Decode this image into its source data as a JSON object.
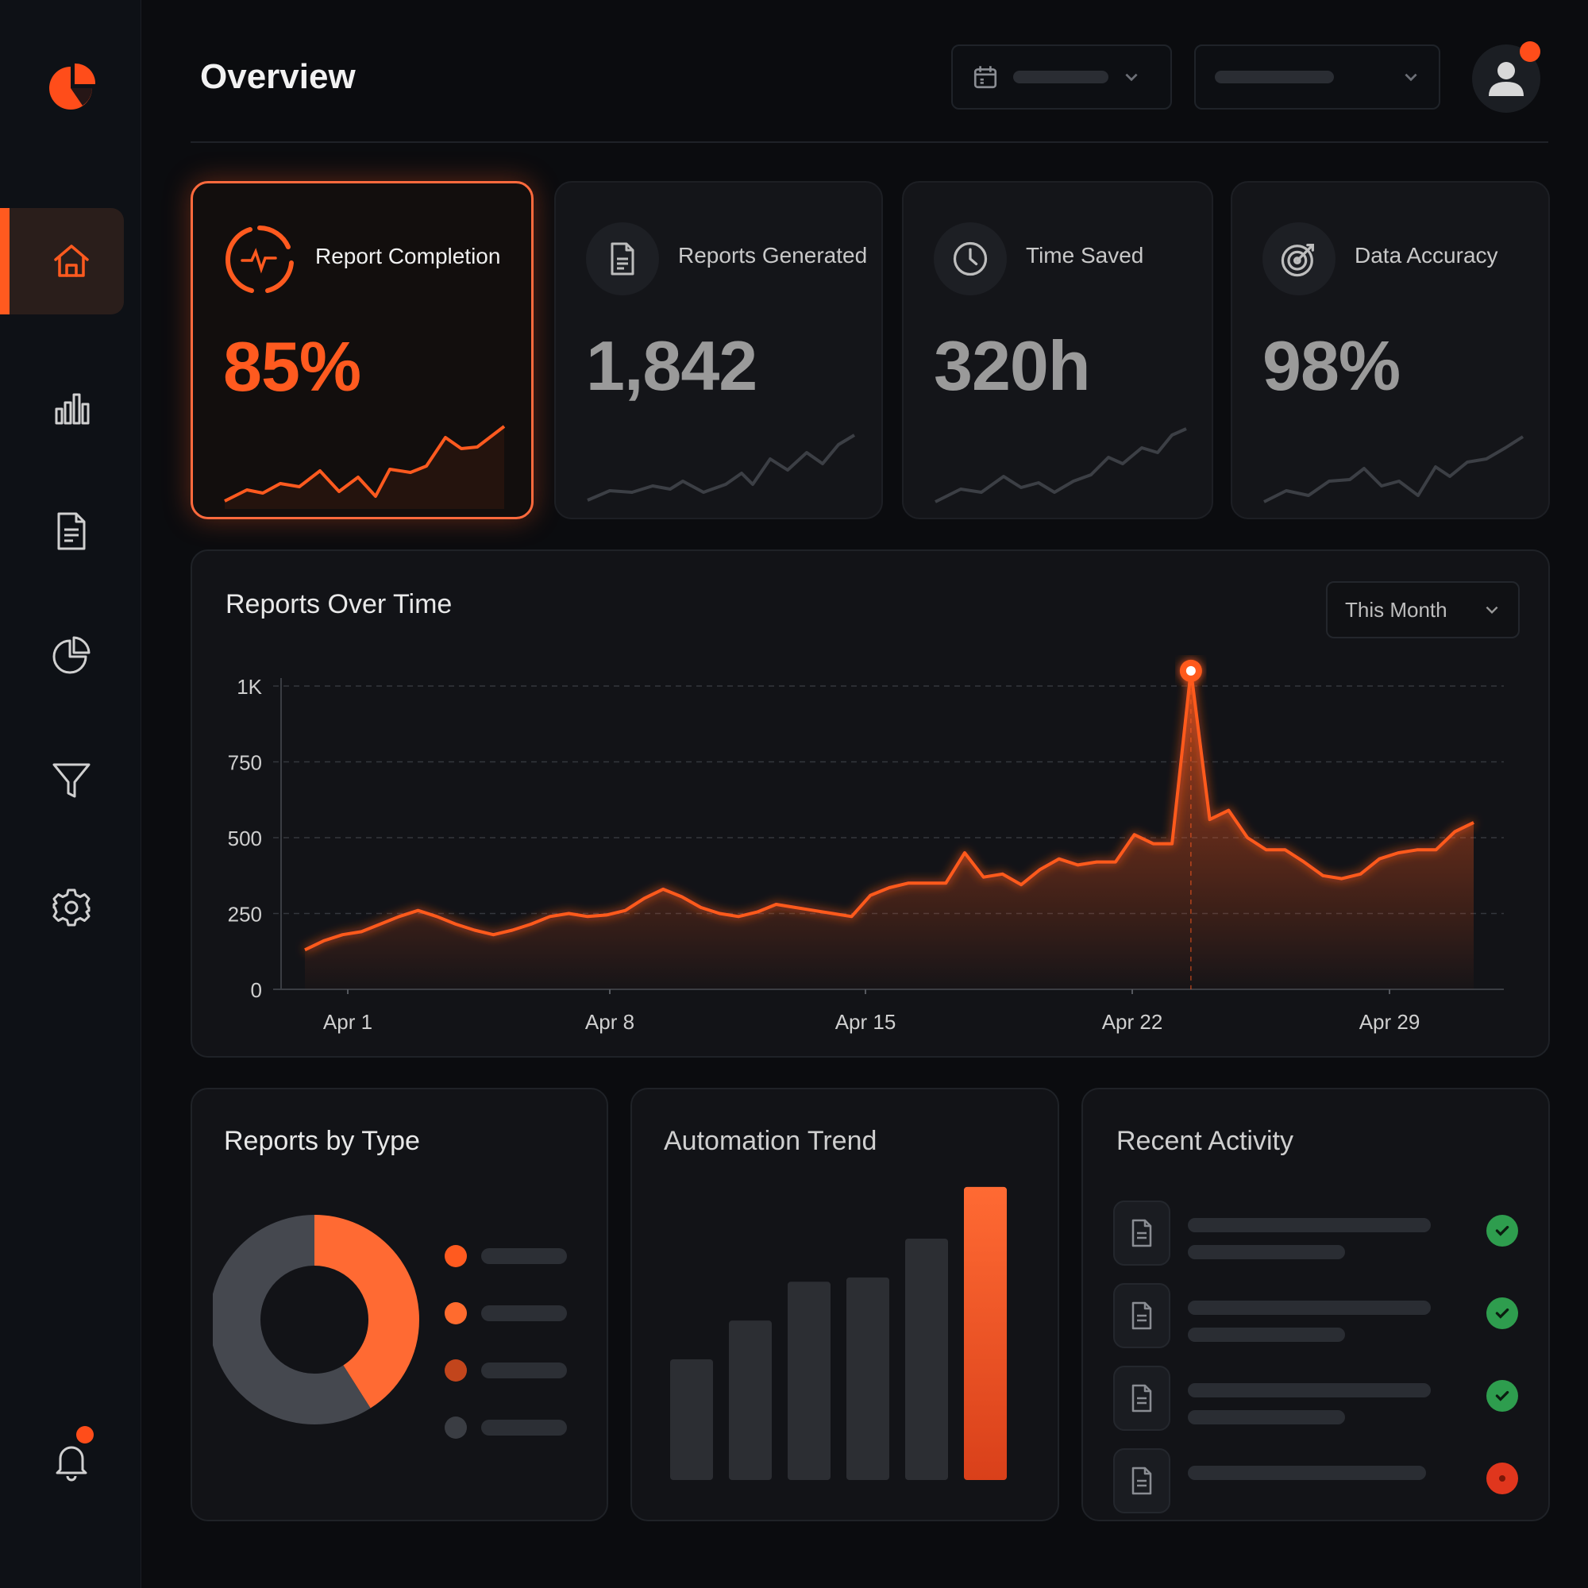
{
  "app": {
    "page_title": "Overview"
  },
  "sidebar": {
    "items": [
      {
        "name": "home-icon",
        "active": true
      },
      {
        "name": "bar-chart-icon",
        "active": false
      },
      {
        "name": "document-icon",
        "active": false
      },
      {
        "name": "pie-chart-icon",
        "active": false
      },
      {
        "name": "filter-icon",
        "active": false
      },
      {
        "name": "gear-icon",
        "active": false
      }
    ],
    "notifications": {
      "name": "bell-icon",
      "has_badge": true
    }
  },
  "header": {
    "date_select_icon": "calendar-icon",
    "user_avatar_badge": true
  },
  "kpis": [
    {
      "label": "Report Completion",
      "value": "85%",
      "icon": "pulse-icon",
      "highlight": true
    },
    {
      "label": "Reports Generated",
      "value": "1,842",
      "icon": "document-icon",
      "highlight": false
    },
    {
      "label": "Time Saved",
      "value": "320h",
      "icon": "clock-icon",
      "highlight": false
    },
    {
      "label": "Data Accuracy",
      "value": "98%",
      "icon": "target-icon",
      "highlight": false
    }
  ],
  "reports_over_time": {
    "title": "Reports Over Time",
    "range_label": "This Month",
    "chart_data": {
      "type": "area",
      "ylim": [
        0,
        1000
      ],
      "y_ticks": [
        "0",
        "250",
        "500",
        "750",
        "1K"
      ],
      "x_ticks": [
        "Apr 1",
        "Apr 8",
        "Apr 15",
        "Apr 22",
        "Apr 29"
      ],
      "grid": true,
      "series": [
        {
          "values": [
            130,
            160,
            180,
            190,
            215,
            240,
            260,
            240,
            215,
            195,
            180,
            195,
            215,
            240,
            250,
            240,
            245,
            260,
            300,
            330,
            305,
            270,
            250,
            240,
            255,
            280,
            270,
            260,
            250,
            240,
            310,
            335,
            350,
            350,
            350,
            450,
            370,
            380,
            345,
            395,
            430,
            410,
            420,
            420,
            510,
            480,
            480,
            1050,
            560,
            590,
            500,
            460,
            460,
            420,
            375,
            365,
            380,
            430,
            450,
            460,
            460,
            520,
            550
          ]
        }
      ],
      "peak_index": 47
    }
  },
  "reports_by_type": {
    "title": "Reports by Type",
    "chart_data": {
      "type": "pie",
      "slices": [
        {
          "share": 0.41,
          "color": "#ff6a33"
        },
        {
          "share": 0.59,
          "color": "#45484f"
        }
      ],
      "legend_colors": [
        "#ff5a1f",
        "#ff6b2e",
        "#c2451c",
        "#3a3d43"
      ]
    }
  },
  "automation_trend": {
    "title": "Automation Trend",
    "chart_data": {
      "type": "bar",
      "values": [
        28,
        37,
        46,
        47,
        56,
        68
      ],
      "highlight_index": 5,
      "ylim": [
        0,
        70
      ]
    }
  },
  "recent_activity": {
    "title": "Recent Activity",
    "items": [
      {
        "icon": "document-icon",
        "status": "success",
        "status_icon": "check-icon"
      },
      {
        "icon": "document-icon",
        "status": "success",
        "status_icon": "check-icon"
      },
      {
        "icon": "document-icon",
        "status": "success",
        "status_icon": "check-icon"
      },
      {
        "icon": "document-icon",
        "status": "error",
        "status_icon": "error-icon"
      }
    ]
  },
  "colors": {
    "accent": "#ff5a1f",
    "success": "#2e9d4e",
    "error": "#e0361d",
    "background": "#0b0c0f"
  }
}
